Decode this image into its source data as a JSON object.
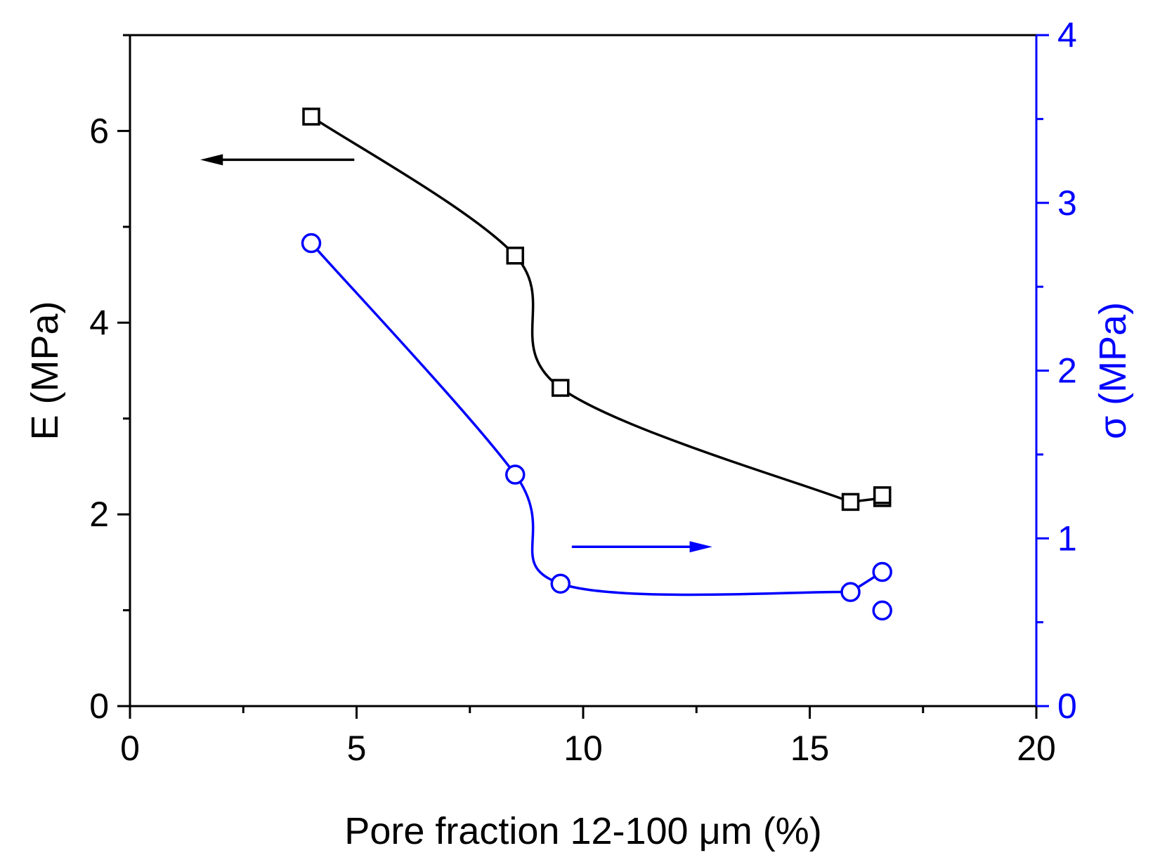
{
  "chart_data": {
    "type": "line",
    "title": "",
    "xlabel": "Pore fraction 12-100 μm (%)",
    "ylabel_left": "E (MPa)",
    "ylabel_right": "σ (MPa)",
    "xlim": [
      0,
      20
    ],
    "ylim_left": [
      0,
      7
    ],
    "ylim_right": [
      0,
      4
    ],
    "x_ticks": [
      "0",
      "5",
      "10",
      "15",
      "20"
    ],
    "y_left_ticks": [
      "0",
      "2",
      "4",
      "6"
    ],
    "y_right_ticks": [
      "0",
      "1",
      "2",
      "3",
      "4"
    ],
    "grid": false,
    "colors": {
      "left_axis": "#000000",
      "right_axis": "#0000ff",
      "E_series": "#000000",
      "sigma_series": "#0000ff"
    },
    "series": [
      {
        "name": "E",
        "axis": "left",
        "marker": "square",
        "x": [
          4.0,
          8.5,
          9.5,
          15.9,
          16.6,
          16.6
        ],
        "y": [
          6.15,
          4.7,
          3.32,
          2.13,
          2.17,
          2.2
        ]
      },
      {
        "name": "σ",
        "axis": "right",
        "marker": "circle",
        "x": [
          4.0,
          8.5,
          9.5,
          15.9,
          16.6,
          16.6
        ],
        "y": [
          2.76,
          1.38,
          0.73,
          0.68,
          0.8,
          0.57
        ]
      }
    ],
    "annotations": [
      {
        "type": "arrow",
        "direction": "left",
        "meaning": "E series uses left axis"
      },
      {
        "type": "arrow",
        "direction": "right",
        "meaning": "σ series uses right axis"
      }
    ]
  }
}
